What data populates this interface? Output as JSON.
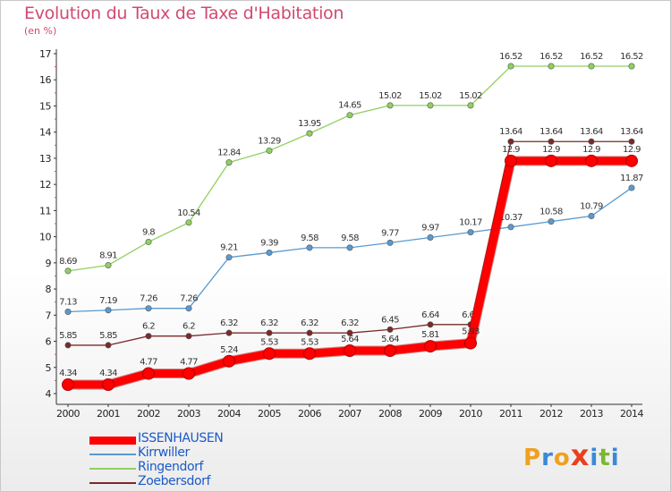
{
  "header": {
    "title": "Evolution du Taux de Taxe d'Habitation",
    "subtitle": "(en %)"
  },
  "logo": {
    "text": "Proxiti",
    "letters": [
      "P",
      "r",
      "o",
      "x",
      "i",
      "t",
      "i"
    ],
    "colors": [
      "#f0a020",
      "#3a8ad8",
      "#f0a020",
      "#e84020",
      "#3a8ad8",
      "#7ab830",
      "#3a8ad8"
    ]
  },
  "chart_data": {
    "type": "line",
    "x": [
      "2000",
      "2001",
      "2002",
      "2003",
      "2004",
      "2005",
      "2006",
      "2007",
      "2008",
      "2009",
      "2010",
      "2011",
      "2012",
      "2013",
      "2014"
    ],
    "yticks": [
      "4",
      "5",
      "6",
      "7",
      "8",
      "9",
      "10",
      "11",
      "12",
      "13",
      "14",
      "15",
      "16",
      "17"
    ],
    "ylim": [
      4,
      17
    ],
    "grid": false,
    "legend_position": "bottom-left",
    "series": [
      {
        "name": "Ringendorf",
        "color": "#90d060",
        "width": 1.3,
        "values": [
          8.69,
          8.91,
          9.8,
          10.54,
          12.84,
          13.29,
          13.95,
          14.65,
          15.02,
          15.02,
          15.02,
          16.52,
          16.52,
          16.52,
          16.52
        ],
        "labels": [
          "8.69",
          "8.91",
          "9.8",
          "10.54",
          "12.84",
          "13.29",
          "13.95",
          "14.65",
          "15.02",
          "15.02",
          "15.02",
          "16.52",
          "16.52",
          "16.52",
          "16.52"
        ]
      },
      {
        "name": "Kirrwiller",
        "color": "#5a9ad0",
        "width": 1.3,
        "values": [
          7.13,
          7.19,
          7.26,
          7.26,
          9.21,
          9.39,
          9.58,
          9.58,
          9.77,
          9.97,
          10.17,
          10.37,
          10.58,
          10.79,
          11.87
        ],
        "labels": [
          "7.13",
          "7.19",
          "7.26",
          "7.26",
          "9.21",
          "9.39",
          "9.58",
          "9.58",
          "9.77",
          "9.97",
          "10.17",
          "10.37",
          "10.58",
          "10.79",
          "11.87"
        ]
      },
      {
        "name": "Zoebersdorf",
        "color": "#7a2a2a",
        "width": 1.3,
        "values": [
          5.85,
          5.85,
          6.2,
          6.2,
          6.32,
          6.32,
          6.32,
          6.32,
          6.45,
          6.64,
          6.64,
          13.64,
          13.64,
          13.64,
          13.64
        ],
        "labels": [
          "5.85",
          "5.85",
          "6.2",
          "6.2",
          "6.32",
          "6.32",
          "6.32",
          "6.32",
          "6.45",
          "6.64",
          "6.64",
          "13.64",
          "13.64",
          "13.64",
          "13.64"
        ]
      },
      {
        "name": "ISSENHAUSEN",
        "color": "#ff0000",
        "width": 9,
        "values": [
          4.34,
          4.34,
          4.77,
          4.77,
          5.24,
          5.53,
          5.53,
          5.64,
          5.64,
          5.81,
          5.93,
          12.9,
          12.9,
          12.9,
          12.9
        ],
        "labels": [
          "4.34",
          "4.34",
          "4.77",
          "4.77",
          "5.24",
          "5.53",
          "5.53",
          "5.64",
          "5.64",
          "5.81",
          "5.93",
          "12.9",
          "12.9",
          "12.9",
          "12.9"
        ]
      }
    ]
  }
}
